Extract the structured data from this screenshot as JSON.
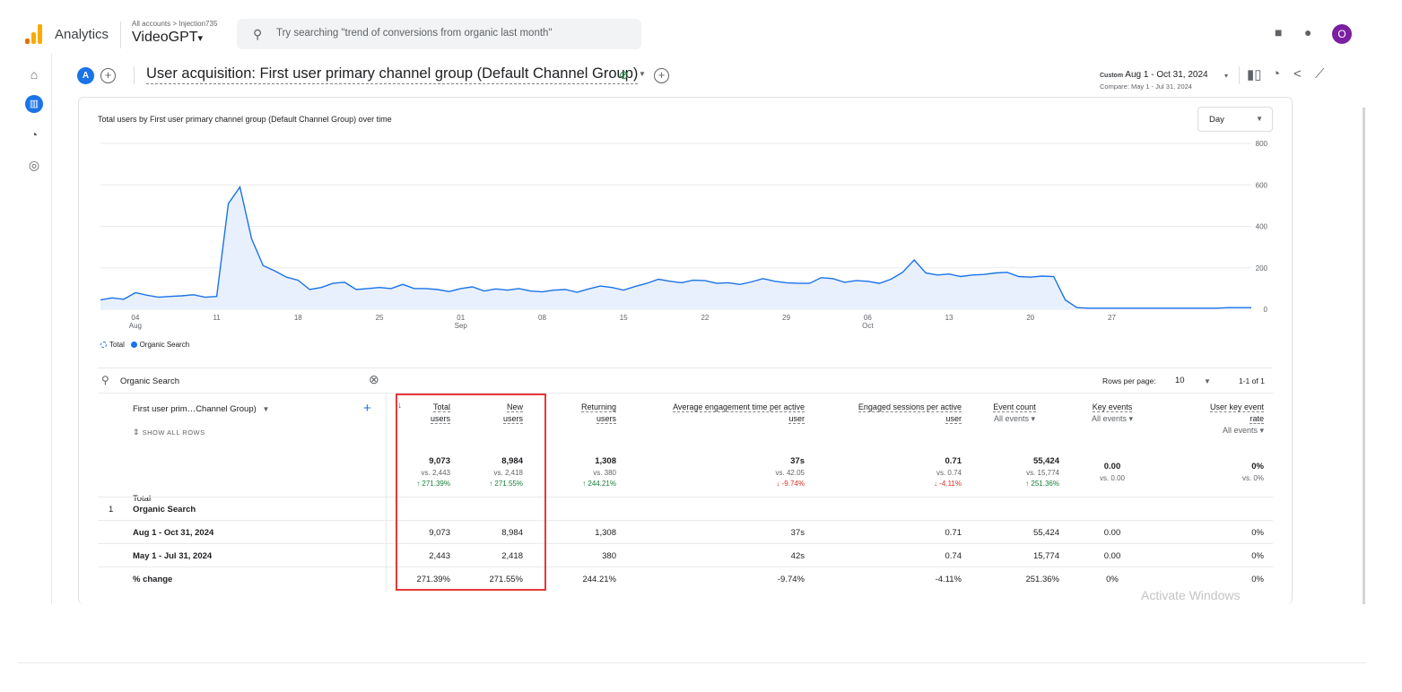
{
  "app": {
    "name": "Analytics",
    "breadcrumb": "All accounts > Injection735",
    "property": "VideoGPT",
    "property_caret": "▾",
    "avatar_initial": "O"
  },
  "search": {
    "placeholder": "Try searching \"trend of conversions from organic last month\""
  },
  "colors": {
    "accent": "#1a73e8",
    "logo_orange": "#f9ab00",
    "logo_dark": "#e37400",
    "up": "#188038",
    "down": "#d93025",
    "highlight": "#e53935",
    "avatar": "#7b1fa2"
  },
  "report": {
    "badge": "A",
    "title": "User acquisition: First user primary channel group (Default Channel Group)",
    "date_label": "Custom",
    "date_range": "Aug 1 - Oct 31, 2024",
    "compare": "Compare: May 1 - Jul 31, 2024"
  },
  "chart": {
    "title": "Total users by First user primary channel group (Default Channel Group) over time",
    "granularity": "Day",
    "legend": [
      "Total",
      "Organic Search"
    ]
  },
  "chart_data": {
    "type": "area",
    "ylim": [
      0,
      800
    ],
    "yticks": [
      0,
      200,
      400,
      600,
      800
    ],
    "xtick_labels": [
      {
        "top": "04",
        "bottom": "Aug"
      },
      {
        "top": "11",
        "bottom": ""
      },
      {
        "top": "18",
        "bottom": ""
      },
      {
        "top": "25",
        "bottom": ""
      },
      {
        "top": "01",
        "bottom": "Sep"
      },
      {
        "top": "08",
        "bottom": ""
      },
      {
        "top": "15",
        "bottom": ""
      },
      {
        "top": "22",
        "bottom": ""
      },
      {
        "top": "29",
        "bottom": ""
      },
      {
        "top": "06",
        "bottom": "Oct"
      },
      {
        "top": "13",
        "bottom": ""
      },
      {
        "top": "20",
        "bottom": ""
      },
      {
        "top": "27",
        "bottom": ""
      }
    ],
    "series": [
      {
        "name": "Organic Search",
        "values": [
          45,
          55,
          48,
          80,
          68,
          58,
          62,
          65,
          70,
          58,
          62,
          510,
          590,
          340,
          210,
          185,
          155,
          140,
          95,
          105,
          125,
          130,
          95,
          100,
          105,
          100,
          120,
          100,
          100,
          95,
          85,
          100,
          108,
          88,
          98,
          92,
          100,
          88,
          84,
          92,
          95,
          82,
          98,
          112,
          105,
          92,
          110,
          125,
          145,
          135,
          128,
          140,
          138,
          125,
          128,
          120,
          132,
          148,
          135,
          128,
          125,
          125,
          152,
          148,
          130,
          138,
          135,
          125,
          145,
          178,
          238,
          175,
          165,
          170,
          158,
          165,
          168,
          175,
          178,
          158,
          155,
          160,
          158,
          45,
          8,
          5,
          5,
          5,
          5,
          5,
          5,
          5,
          5,
          5,
          5,
          5,
          5,
          8,
          8,
          8
        ]
      }
    ]
  },
  "table": {
    "search_value": "Organic Search",
    "rows_per_page_label": "Rows per page:",
    "rows_per_page": "10",
    "pagination": "1-1 of 1",
    "dimension_header": "First user prim…Channel Group)",
    "show_all": "SHOW ALL ROWS",
    "columns": [
      {
        "l1": "Total",
        "l2": "users",
        "sub": ""
      },
      {
        "l1": "New",
        "l2": "users",
        "sub": ""
      },
      {
        "l1": "Returning",
        "l2": "users",
        "sub": ""
      },
      {
        "l1": "Average engagement time per active",
        "l2": "user",
        "sub": ""
      },
      {
        "l1": "Engaged sessions per active",
        "l2": "user",
        "sub": ""
      },
      {
        "l1": "Event count",
        "l2": "",
        "sub": "All events ▾"
      },
      {
        "l1": "Key events",
        "l2": "",
        "sub": "All events ▾"
      },
      {
        "l1": "User key event",
        "l2": "rate",
        "sub": "All events ▾"
      }
    ],
    "totals_label": "Total",
    "totals": [
      {
        "main": "9,073",
        "vs": "vs. 2,443",
        "change": "↑ 271.39%"
      },
      {
        "main": "8,984",
        "vs": "vs. 2,418",
        "change": "↑ 271.55%"
      },
      {
        "main": "1,308",
        "vs": "vs. 380",
        "change": "↑ 244.21%"
      },
      {
        "main": "37s",
        "vs": "vs. 42.05",
        "change": "↓ -9.74%"
      },
      {
        "main": "0.71",
        "vs": "vs. 0.74",
        "change": "↓ -4.11%"
      },
      {
        "main": "55,424",
        "vs": "vs. 15,774",
        "change": "↑ 251.36%"
      },
      {
        "main": "0.00",
        "vs": "vs. 0.00",
        "change": ""
      },
      {
        "main": "0%",
        "vs": "vs. 0%",
        "change": ""
      }
    ],
    "group_index": "1",
    "group_label": "Organic Search",
    "rows": [
      {
        "label": "Aug 1 - Oct 31, 2024",
        "cells": [
          "9,073",
          "8,984",
          "1,308",
          "37s",
          "0.71",
          "55,424",
          "0.00",
          "0%"
        ]
      },
      {
        "label": "May 1 - Jul 31, 2024",
        "cells": [
          "2,443",
          "2,418",
          "380",
          "42s",
          "0.74",
          "15,774",
          "0.00",
          "0%"
        ]
      },
      {
        "label": "% change",
        "cells": [
          "271.39%",
          "271.55%",
          "244.21%",
          "-9.74%",
          "-4.11%",
          "251.36%",
          "0%",
          "0%"
        ]
      }
    ]
  },
  "watermark": "Activate Windows"
}
